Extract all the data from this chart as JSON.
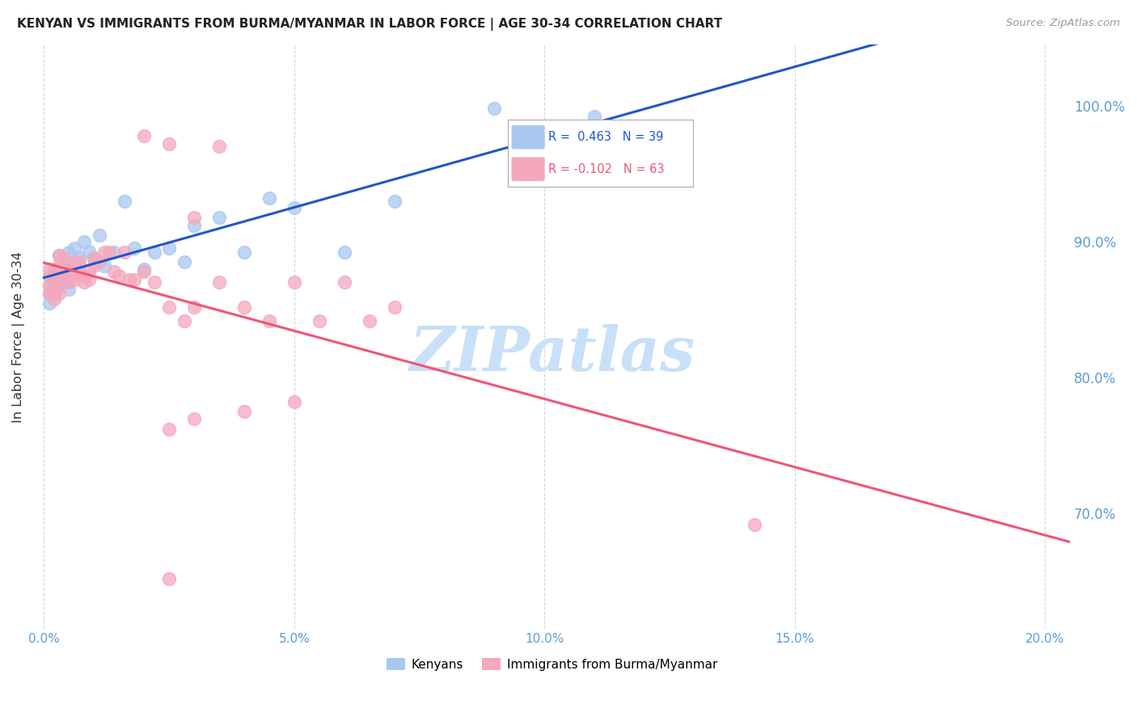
{
  "title": "KENYAN VS IMMIGRANTS FROM BURMA/MYANMAR IN LABOR FORCE | AGE 30-34 CORRELATION CHART",
  "source": "Source: ZipAtlas.com",
  "ylabel": "In Labor Force | Age 30-34",
  "x_ticks": [
    0.0,
    0.05,
    0.1,
    0.15,
    0.2
  ],
  "x_tick_labels": [
    "0.0%",
    "5.0%",
    "10.0%",
    "15.0%",
    "20.0%"
  ],
  "y_ticks": [
    0.7,
    0.8,
    0.9,
    1.0
  ],
  "y_tick_labels": [
    "70.0%",
    "80.0%",
    "90.0%",
    "100.0%"
  ],
  "xlim": [
    -0.002,
    0.205
  ],
  "ylim": [
    0.615,
    1.045
  ],
  "blue_R": 0.463,
  "blue_N": 39,
  "pink_R": -0.102,
  "pink_N": 63,
  "blue_color": "#A8C8F0",
  "pink_color": "#F4A8BC",
  "blue_line_color": "#2255CC",
  "pink_line_color": "#EE5577",
  "label_color": "#5B9BD5",
  "blue_scatter_x": [
    0.001,
    0.001,
    0.001,
    0.002,
    0.002,
    0.002,
    0.003,
    0.003,
    0.003,
    0.004,
    0.004,
    0.005,
    0.005,
    0.005,
    0.006,
    0.006,
    0.007,
    0.007,
    0.008,
    0.009,
    0.01,
    0.011,
    0.012,
    0.014,
    0.016,
    0.018,
    0.02,
    0.022,
    0.025,
    0.028,
    0.03,
    0.035,
    0.04,
    0.045,
    0.05,
    0.06,
    0.07,
    0.09,
    0.11
  ],
  "blue_scatter_y": [
    0.862,
    0.868,
    0.855,
    0.87,
    0.875,
    0.862,
    0.872,
    0.878,
    0.89,
    0.882,
    0.87,
    0.865,
    0.875,
    0.892,
    0.882,
    0.895,
    0.888,
    0.875,
    0.9,
    0.893,
    0.888,
    0.905,
    0.882,
    0.892,
    0.93,
    0.895,
    0.88,
    0.892,
    0.895,
    0.885,
    0.912,
    0.918,
    0.892,
    0.932,
    0.925,
    0.892,
    0.93,
    0.998,
    0.992
  ],
  "pink_scatter_x": [
    0.001,
    0.001,
    0.001,
    0.001,
    0.002,
    0.002,
    0.002,
    0.002,
    0.003,
    0.003,
    0.003,
    0.003,
    0.003,
    0.004,
    0.004,
    0.004,
    0.005,
    0.005,
    0.005,
    0.005,
    0.006,
    0.006,
    0.006,
    0.007,
    0.007,
    0.007,
    0.008,
    0.008,
    0.009,
    0.009,
    0.01,
    0.01,
    0.011,
    0.012,
    0.013,
    0.014,
    0.015,
    0.016,
    0.017,
    0.018,
    0.02,
    0.022,
    0.025,
    0.028,
    0.03,
    0.035,
    0.04,
    0.045,
    0.05,
    0.055,
    0.06,
    0.065,
    0.07,
    0.02,
    0.025,
    0.03,
    0.035,
    0.025,
    0.03,
    0.04,
    0.05,
    0.142,
    0.025
  ],
  "pink_scatter_y": [
    0.862,
    0.868,
    0.875,
    0.88,
    0.858,
    0.865,
    0.872,
    0.88,
    0.862,
    0.868,
    0.875,
    0.882,
    0.89,
    0.88,
    0.888,
    0.875,
    0.875,
    0.882,
    0.87,
    0.878,
    0.878,
    0.885,
    0.872,
    0.878,
    0.885,
    0.875,
    0.875,
    0.87,
    0.878,
    0.872,
    0.888,
    0.882,
    0.885,
    0.892,
    0.892,
    0.878,
    0.875,
    0.892,
    0.872,
    0.872,
    0.878,
    0.87,
    0.852,
    0.842,
    0.852,
    0.87,
    0.852,
    0.842,
    0.87,
    0.842,
    0.87,
    0.842,
    0.852,
    0.978,
    0.972,
    0.918,
    0.97,
    0.762,
    0.77,
    0.775,
    0.782,
    0.692,
    0.652
  ],
  "background_color": "#FFFFFF",
  "grid_color": "#BBBBBB",
  "watermark_text": "ZIPatlas",
  "watermark_color": "#C8E0F8",
  "legend_facecolor": "#FFFFFF",
  "legend_edgecolor": "#AAAAAA",
  "bottom_legend_labels": [
    "Kenyans",
    "Immigrants from Burma/Myanmar"
  ]
}
